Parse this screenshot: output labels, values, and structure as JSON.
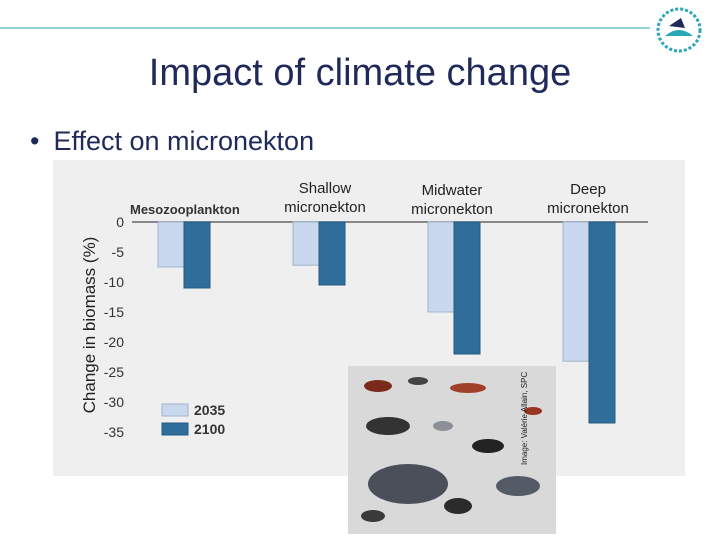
{
  "slide": {
    "title": "Impact of climate change",
    "bullet": "Effect on micronekton",
    "bullet_marker": "•"
  },
  "header_columns": [
    "Shallow micronekton",
    "Midwater micronekton",
    "Deep micronekton"
  ],
  "photo_credit": "Image: Valérie Allain, SPC",
  "colors": {
    "title": "#1f2a5a",
    "rule": "#8fd3db",
    "series_2035": "#c9d8ee",
    "series_2100": "#2f6d9b",
    "panel": "#efefef"
  },
  "chart_data": {
    "type": "bar",
    "ylabel": "Change in biomass (%)",
    "ylim": [
      -35,
      0
    ],
    "yticks": [
      0,
      -5,
      -10,
      -15,
      -20,
      -25,
      -30,
      -35
    ],
    "categories": [
      "Mesozooplankton",
      "Shallow micronekton",
      "Midwater micronekton",
      "Deep micronekton"
    ],
    "series": [
      {
        "name": "2035",
        "values": [
          -7.5,
          -7.2,
          -15,
          -23.2
        ]
      },
      {
        "name": "2100",
        "values": [
          -11,
          -10.5,
          -22,
          -33.5
        ]
      }
    ],
    "legend_position": "bottom-left",
    "grid": false
  }
}
